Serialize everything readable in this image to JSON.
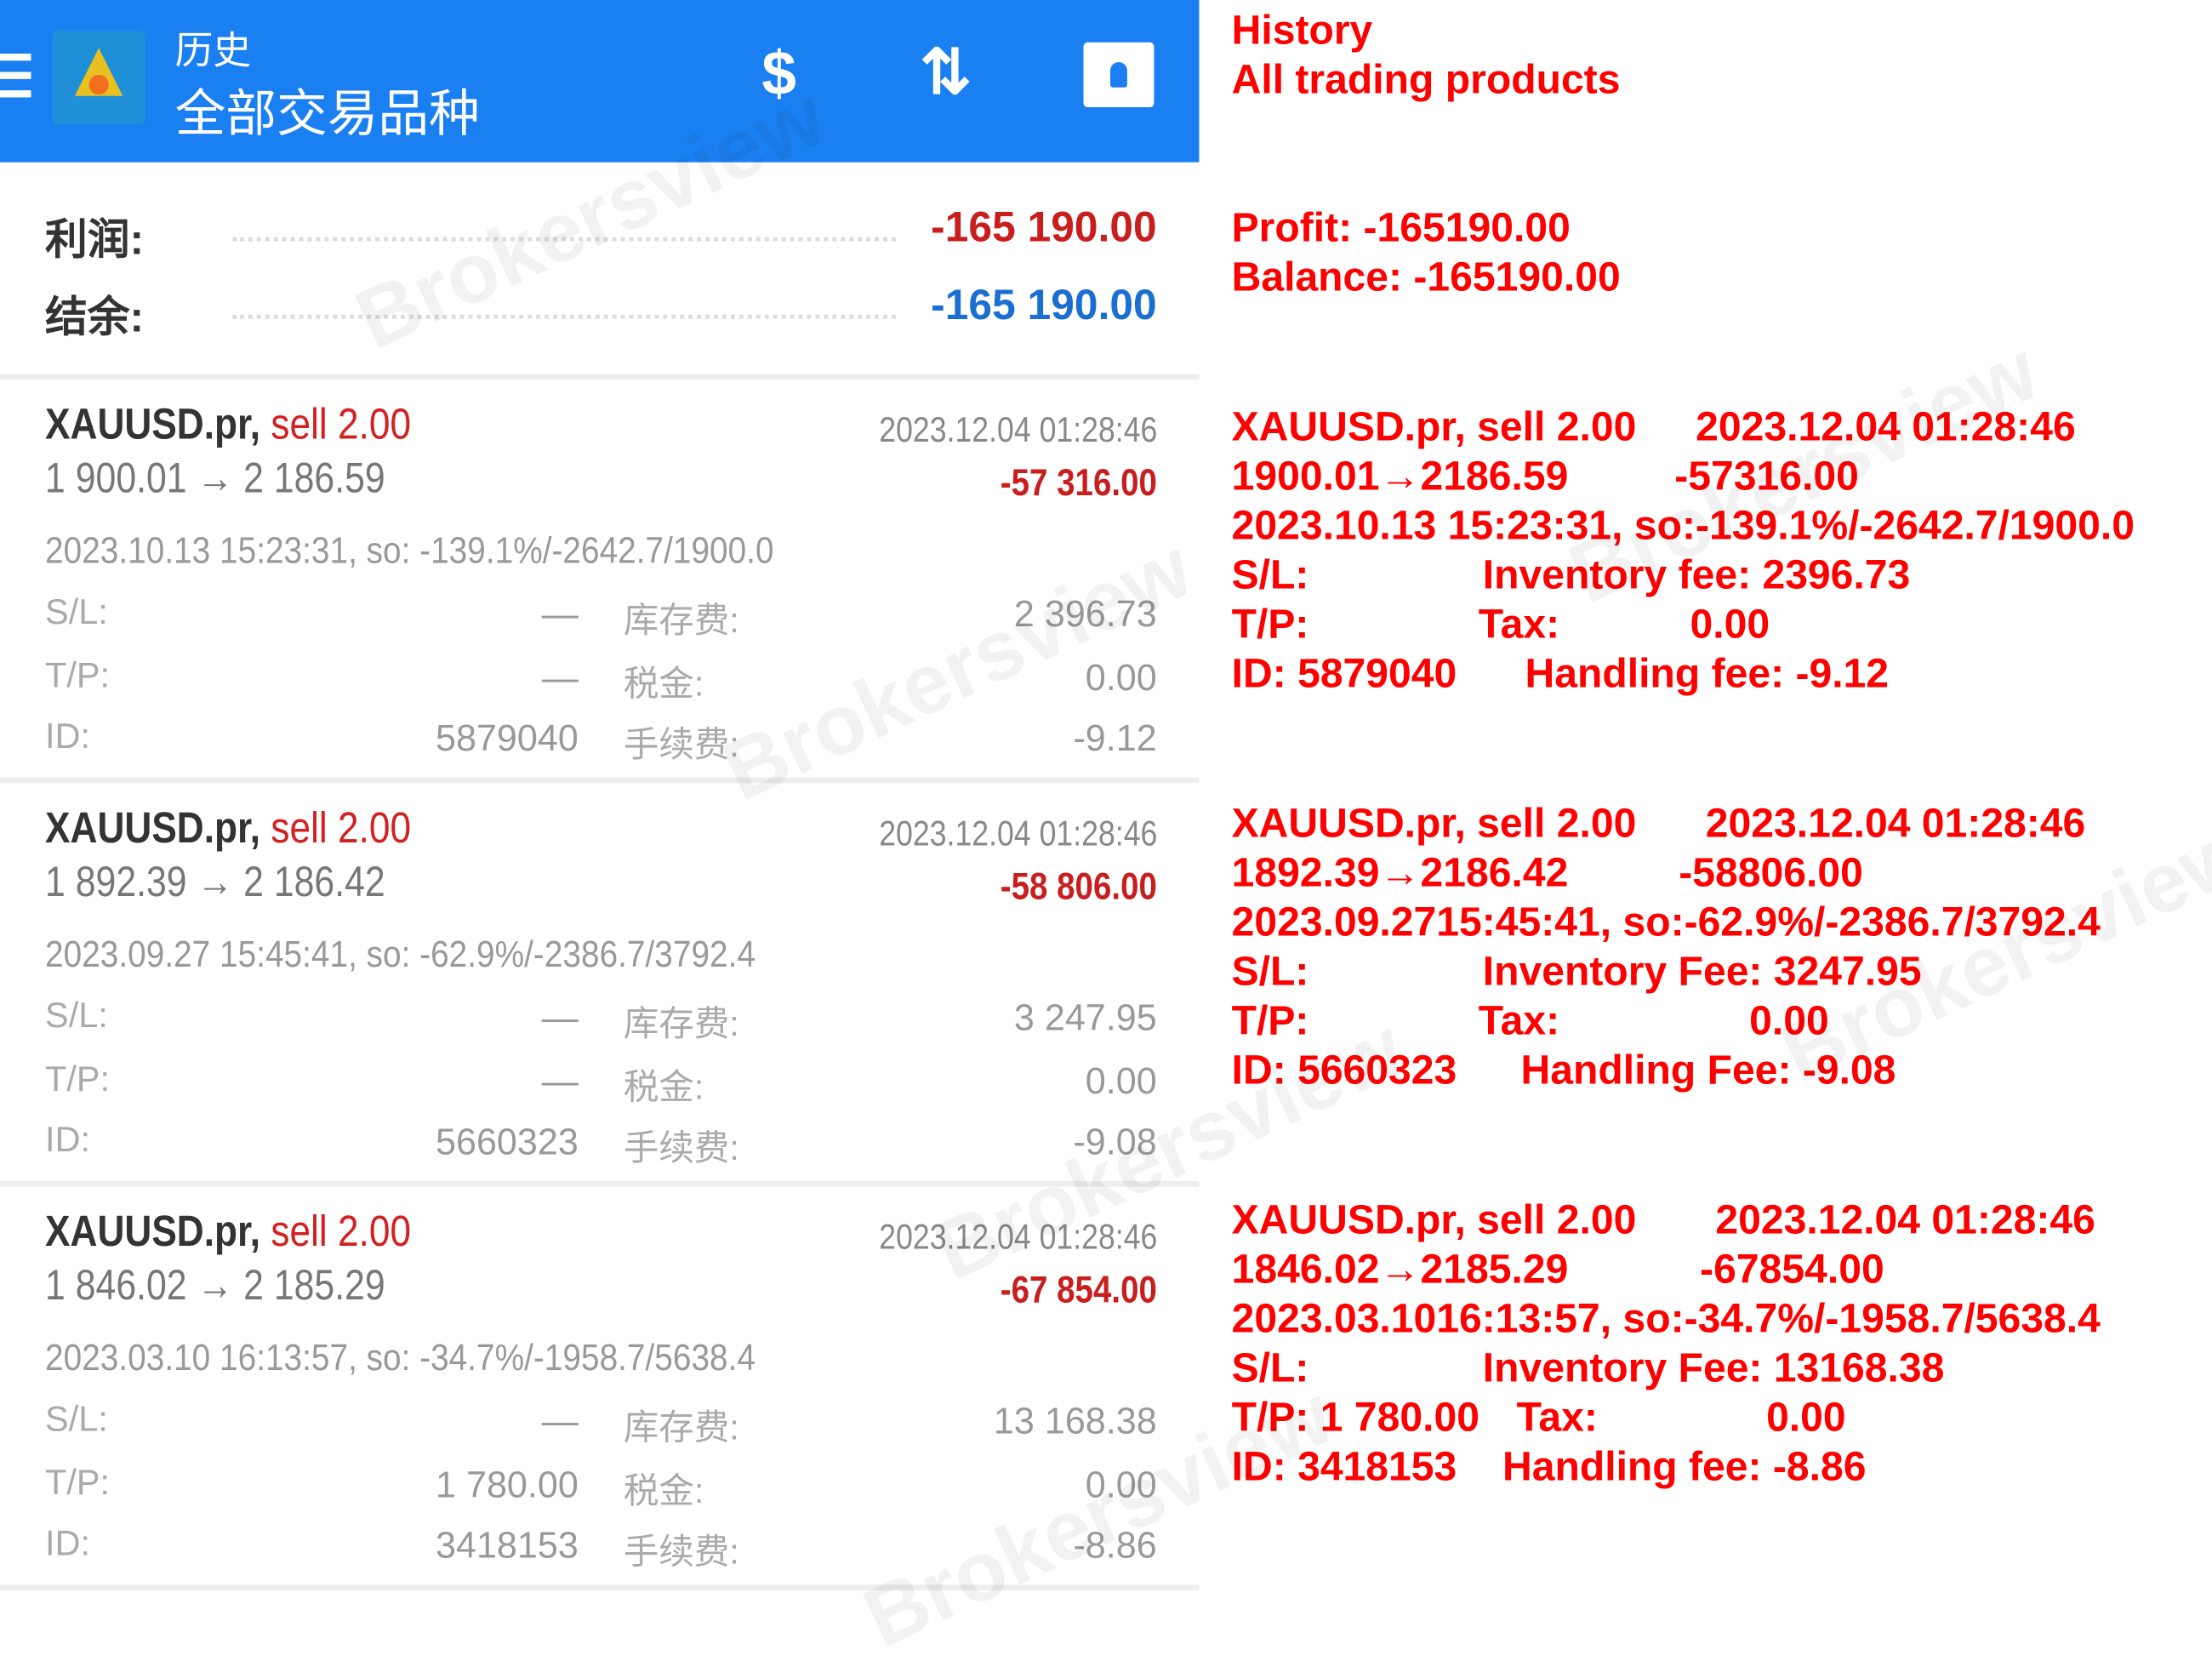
{
  "header": {
    "title": "历史",
    "subtitle": "全部交易品种",
    "icons": [
      "menu-icon",
      "app-logo",
      "dollar-exchange-icon",
      "sort-icon",
      "calendar-add-icon"
    ]
  },
  "summary": {
    "profit_label": "利润:",
    "profit_value": "-165 190.00",
    "balance_label": "结余:",
    "balance_value": "-165 190.00",
    "profit_color": "#c81e1e",
    "balance_color": "#1a6fd0"
  },
  "labels": {
    "sl": "S/L:",
    "tp": "T/P:",
    "id": "ID:",
    "storage": "库存费:",
    "tax": "税金:",
    "commission": "手续费:"
  },
  "trades": [
    {
      "symbol": "XAUUSD.pr,",
      "side": "sell 2.00",
      "time": "2023.12.04 01:28:46",
      "prices": "1 900.01 → 2 186.59",
      "profit": "-57 316.00",
      "open": "2023.10.13 15:23:31, so: -139.1%/-2642.7/1900.0",
      "sl": "—",
      "tp": "—",
      "id": "5879040",
      "storage": "2 396.73",
      "tax": "0.00",
      "commission": "-9.12"
    },
    {
      "symbol": "XAUUSD.pr,",
      "side": "sell 2.00",
      "time": "2023.12.04 01:28:46",
      "prices": "1 892.39 → 2 186.42",
      "profit": "-58 806.00",
      "open": "2023.09.27 15:45:41, so: -62.9%/-2386.7/3792.4",
      "sl": "—",
      "tp": "—",
      "id": "5660323",
      "storage": "3 247.95",
      "tax": "0.00",
      "commission": "-9.08"
    },
    {
      "symbol": "XAUUSD.pr,",
      "side": "sell 2.00",
      "time": "2023.12.04 01:28:46",
      "prices": "1 846.02 → 2 185.29",
      "profit": "-67 854.00",
      "open": "2023.03.10 16:13:57, so: -34.7%/-1958.7/5638.4",
      "sl": "—",
      "tp": "1 780.00",
      "id": "3418153",
      "storage": "13 168.38",
      "tax": "0.00",
      "commission": "-8.86"
    }
  ],
  "translation": {
    "color": "#ff0000",
    "title": "History",
    "subtitle": "All trading products",
    "profit": "Profit: -165190.00",
    "balance": "Balance: -165190.00",
    "blocks": [
      {
        "l1a": "XAUUSD.pr, sell 2.00",
        "l1b": "2023.12.04 01:28:46",
        "l2a": "1900.01→2186.59",
        "l2b": "-57316.00",
        "l3": "2023.10.13 15:23:31, so:-139.1%/-2642.7/1900.0",
        "sl": "S/L:",
        "inv": "Inventory fee: 2396.73",
        "tp": "T/P:",
        "tax": "Tax:",
        "taxv": "0.00",
        "id": "ID: 5879040",
        "fee": "Handling fee: -9.12"
      },
      {
        "l1a": "XAUUSD.pr, sell 2.00",
        "l1b": "2023.12.04 01:28:46",
        "l2a": "1892.39→2186.42",
        "l2b": "-58806.00",
        "l3": "2023.09.2715:45:41, so:-62.9%/-2386.7/3792.4",
        "sl": "S/L:",
        "inv": "Inventory Fee: 3247.95",
        "tp": "T/P:",
        "tax": "Tax:",
        "taxv": "0.00",
        "id": "ID: 5660323",
        "fee": "Handling Fee:  -9.08"
      },
      {
        "l1a": "XAUUSD.pr, sell 2.00",
        "l1b": "2023.12.04 01:28:46",
        "l2a": "1846.02→2185.29",
        "l2b": "-67854.00",
        "l3": "2023.03.1016:13:57, so:-34.7%/-1958.7/5638.4",
        "sl": "S/L:",
        "inv": "Inventory Fee: 13168.38",
        "tp": "T/P: 1 780.00",
        "tax": "Tax:",
        "taxv": "0.00",
        "id": "ID: 3418153",
        "fee": "Handling fee:  -8.86"
      }
    ]
  },
  "watermark": "Brokersview"
}
